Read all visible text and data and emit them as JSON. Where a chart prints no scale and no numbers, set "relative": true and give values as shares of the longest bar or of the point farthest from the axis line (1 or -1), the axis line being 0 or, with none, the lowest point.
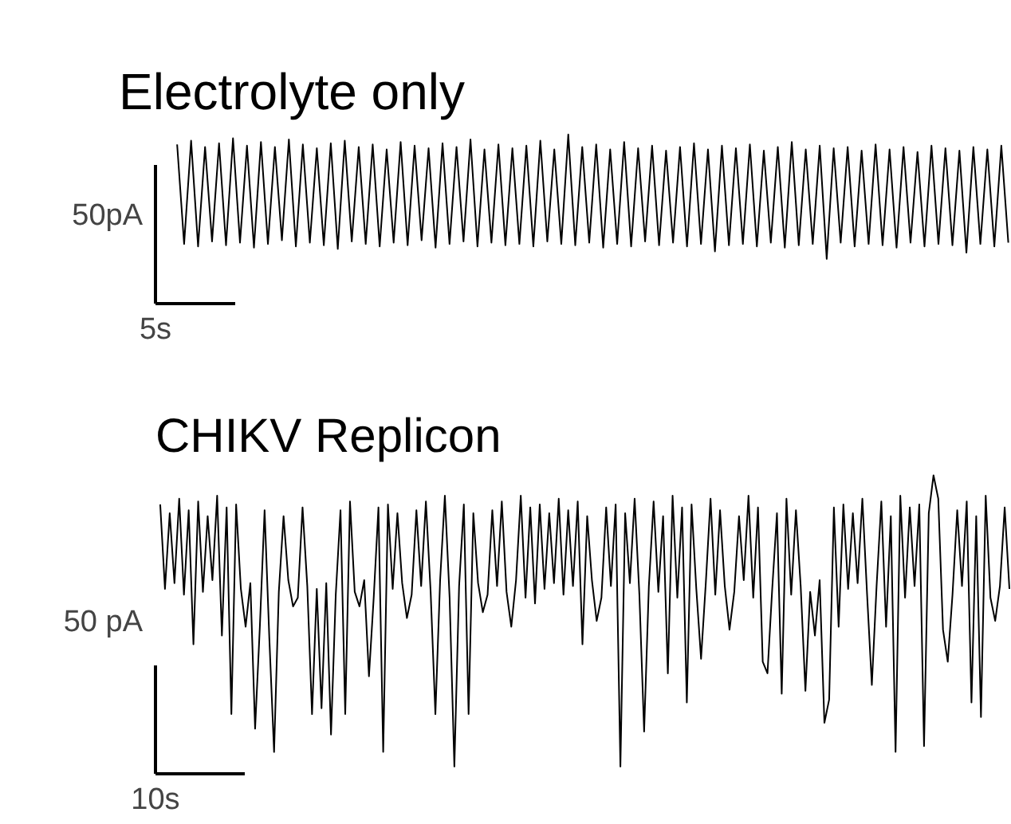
{
  "chart_data": [
    {
      "type": "line",
      "title": "Electrolyte only",
      "xlabel": "5s",
      "ylabel": "50pA",
      "relative": true,
      "color": "#000000",
      "categories": [
        null,
        null,
        null,
        null,
        null,
        null,
        null,
        null,
        null,
        null,
        null,
        null,
        null,
        null,
        null,
        null,
        null,
        null,
        null,
        null,
        null,
        null,
        null,
        null,
        null,
        null,
        null,
        null,
        null,
        null,
        null,
        null,
        null,
        null,
        null,
        null,
        null,
        null,
        null,
        null,
        null,
        null,
        null,
        null,
        null,
        null,
        null,
        null,
        null,
        null,
        null,
        null,
        null,
        null,
        null,
        null,
        null,
        null,
        null,
        null,
        null,
        null,
        null,
        null,
        null,
        null,
        null,
        null,
        null,
        null,
        null,
        null,
        null,
        null,
        null,
        null,
        null,
        null,
        null,
        null,
        null,
        null,
        null,
        null,
        null,
        null,
        null,
        null,
        null,
        null,
        null,
        null,
        null,
        null,
        null,
        null,
        null,
        null,
        null,
        null,
        null,
        null,
        null,
        null,
        null,
        null,
        null,
        null,
        null,
        null,
        null,
        null,
        null,
        null,
        null,
        null,
        null,
        null,
        null,
        null
      ],
      "values": [
        0.92,
        0.12,
        0.95,
        0.1,
        0.9,
        0.14,
        0.93,
        0.11,
        0.97,
        0.13,
        0.91,
        0.09,
        0.94,
        0.12,
        0.9,
        0.15,
        0.96,
        0.1,
        0.92,
        0.13,
        0.89,
        0.11,
        0.93,
        0.08,
        0.95,
        0.14,
        0.9,
        0.12,
        0.92,
        0.1,
        0.88,
        0.13,
        0.94,
        0.11,
        0.91,
        0.15,
        0.89,
        0.09,
        0.93,
        0.12,
        0.9,
        0.14,
        0.96,
        0.1,
        0.88,
        0.13,
        0.92,
        0.11,
        0.89,
        0.12,
        0.91,
        0.1,
        0.95,
        0.14,
        0.88,
        0.12,
        1,
        0.11,
        0.9,
        0.13,
        0.92,
        0.09,
        0.88,
        0.12,
        0.94,
        0.1,
        0.89,
        0.14,
        0.91,
        0.11,
        0.87,
        0.13,
        0.9,
        0.1,
        0.93,
        0.12,
        0.88,
        0.06,
        0.91,
        0.11,
        0.89,
        0.12,
        0.92,
        0.1,
        0.87,
        0.13,
        0.9,
        0.09,
        0.94,
        0.11,
        0.88,
        0.12,
        0.91,
        0.0,
        0.89,
        0.13,
        0.9,
        0.1,
        0.87,
        0.12,
        0.92,
        0.11,
        0.88,
        0.09,
        0.9,
        0.13,
        0.86,
        0.1,
        0.91,
        0.12,
        0.89,
        0.11,
        0.87,
        0.05,
        0.9,
        0.12,
        0.88,
        0.1,
        0.91,
        0.13
      ]
    },
    {
      "type": "line",
      "title": "CHIKV Replicon",
      "xlabel": "10s",
      "ylabel": "50 pA",
      "relative": true,
      "color": "#000000",
      "categories": [
        null,
        null,
        null,
        null,
        null,
        null,
        null,
        null,
        null,
        null,
        null,
        null,
        null,
        null,
        null,
        null,
        null,
        null,
        null,
        null,
        null,
        null,
        null,
        null,
        null,
        null,
        null,
        null,
        null,
        null,
        null,
        null,
        null,
        null,
        null,
        null,
        null,
        null,
        null,
        null,
        null,
        null,
        null,
        null,
        null,
        null,
        null,
        null,
        null,
        null,
        null,
        null,
        null,
        null,
        null,
        null,
        null,
        null,
        null,
        null,
        null,
        null,
        null,
        null,
        null,
        null,
        null,
        null,
        null,
        null,
        null,
        null,
        null,
        null,
        null,
        null,
        null,
        null,
        null,
        null,
        null,
        null,
        null,
        null,
        null,
        null,
        null,
        null,
        null,
        null,
        null,
        null,
        null,
        null,
        null,
        null,
        null,
        null,
        null,
        null,
        null,
        null,
        null,
        null,
        null,
        null,
        null,
        null,
        null,
        null,
        null,
        null,
        null,
        null,
        null,
        null,
        null,
        null,
        null,
        null,
        null,
        null,
        null,
        null,
        null,
        null,
        null,
        null,
        null,
        null,
        null,
        null,
        null,
        null,
        null,
        null,
        null,
        null,
        null,
        null,
        null,
        null,
        null,
        null,
        null,
        null,
        null,
        null,
        null,
        null,
        null,
        null,
        null,
        null,
        null,
        null,
        null,
        null,
        null,
        null,
        null,
        null,
        null,
        null,
        null,
        null,
        null,
        null,
        null,
        null,
        null,
        null,
        null,
        null,
        null,
        null,
        null,
        null,
        null,
        null
      ],
      "values": [
        0.9,
        0.61,
        0.87,
        0.63,
        0.92,
        0.59,
        0.88,
        0.42,
        0.91,
        0.6,
        0.86,
        0.64,
        0.93,
        0.45,
        0.89,
        0.18,
        0.9,
        0.61,
        0.48,
        0.63,
        0.13,
        0.48,
        0.88,
        0.44,
        0.05,
        0.6,
        0.86,
        0.64,
        0.55,
        0.58,
        0.89,
        0.62,
        0.18,
        0.61,
        0.2,
        0.63,
        0.11,
        0.59,
        0.88,
        0.18,
        0.91,
        0.6,
        0.55,
        0.64,
        0.31,
        0.58,
        0.89,
        0.05,
        0.9,
        0.61,
        0.87,
        0.63,
        0.51,
        0.59,
        0.88,
        0.62,
        0.91,
        0.6,
        0.18,
        0.64,
        0.93,
        0.58,
        0,
        0.62,
        0.9,
        0.18,
        0.87,
        0.63,
        0.53,
        0.59,
        0.88,
        0.62,
        0.91,
        0.6,
        0.48,
        0.64,
        0.93,
        0.58,
        0.89,
        0.56,
        0.9,
        0.61,
        0.87,
        0.63,
        0.92,
        0.59,
        0.88,
        0.62,
        0.91,
        0.42,
        0.86,
        0.64,
        0.5,
        0.58,
        0.89,
        0.62,
        0.9,
        0,
        0.87,
        0.63,
        0.92,
        0.59,
        0.12,
        0.62,
        0.91,
        0.6,
        0.86,
        0.32,
        0.93,
        0.58,
        0.89,
        0.22,
        0.9,
        0.61,
        0.37,
        0.63,
        0.92,
        0.59,
        0.88,
        0.62,
        0.47,
        0.6,
        0.86,
        0.64,
        0.93,
        0.58,
        0.89,
        0.36,
        0.32,
        0.61,
        0.87,
        0.25,
        0.92,
        0.59,
        0.88,
        0.62,
        0.26,
        0.6,
        0.45,
        0.64,
        0.15,
        0.23,
        0.89,
        0.48,
        0.9,
        0.61,
        0.87,
        0.63,
        0.92,
        0.59,
        0.28,
        0.62,
        0.91,
        0.48,
        0.86,
        0.05,
        0.93,
        0.58,
        0.89,
        0.62,
        0.9,
        0.07,
        0.87,
        1,
        0.92,
        0.47,
        0.36,
        0.59,
        0.88,
        0.62,
        0.91,
        0.22,
        0.86,
        0.17,
        0.93,
        0.58,
        0.5,
        0.62,
        0.89,
        0.61
      ]
    }
  ]
}
